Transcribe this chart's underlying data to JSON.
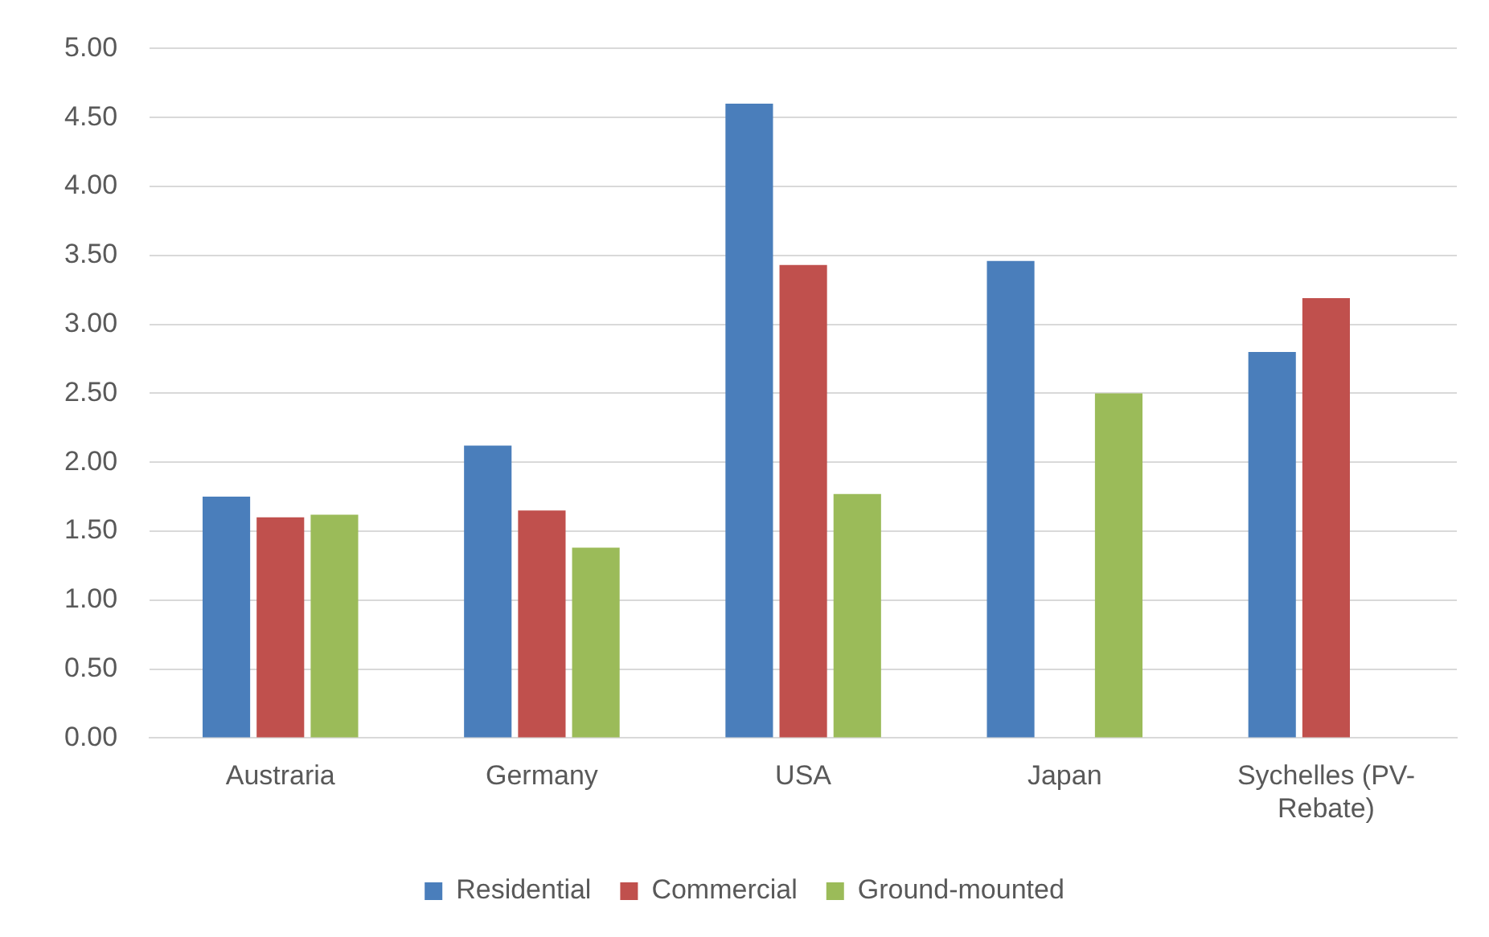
{
  "chart_data": {
    "type": "bar",
    "categories": [
      "Austraria",
      "Germany",
      "USA",
      "Japan",
      "Sychelles (PV-Rebate)"
    ],
    "series": [
      {
        "name": "Residential",
        "color": "#4a7ebb",
        "values": [
          1.75,
          2.12,
          4.6,
          3.46,
          2.8
        ]
      },
      {
        "name": "Commercial",
        "color": "#c0504d",
        "values": [
          1.6,
          1.65,
          3.43,
          null,
          3.19
        ]
      },
      {
        "name": "Ground-mounted",
        "color": "#9bbb59",
        "values": [
          1.62,
          1.38,
          1.77,
          2.5,
          null
        ]
      }
    ],
    "ylim": [
      0,
      5
    ],
    "yticks": [
      {
        "value": 0,
        "label": "0.00"
      },
      {
        "value": 0.5,
        "label": "0.50"
      },
      {
        "value": 1,
        "label": "1.00"
      },
      {
        "value": 1.5,
        "label": "1.50"
      },
      {
        "value": 2,
        "label": "2.00"
      },
      {
        "value": 2.5,
        "label": "2.50"
      },
      {
        "value": 3,
        "label": "3.00"
      },
      {
        "value": 3.5,
        "label": "3.50"
      },
      {
        "value": 4,
        "label": "4.00"
      },
      {
        "value": 4.5,
        "label": "4.50"
      },
      {
        "value": 5,
        "label": "5.00"
      }
    ],
    "grid": "y",
    "legend": "bottom"
  }
}
